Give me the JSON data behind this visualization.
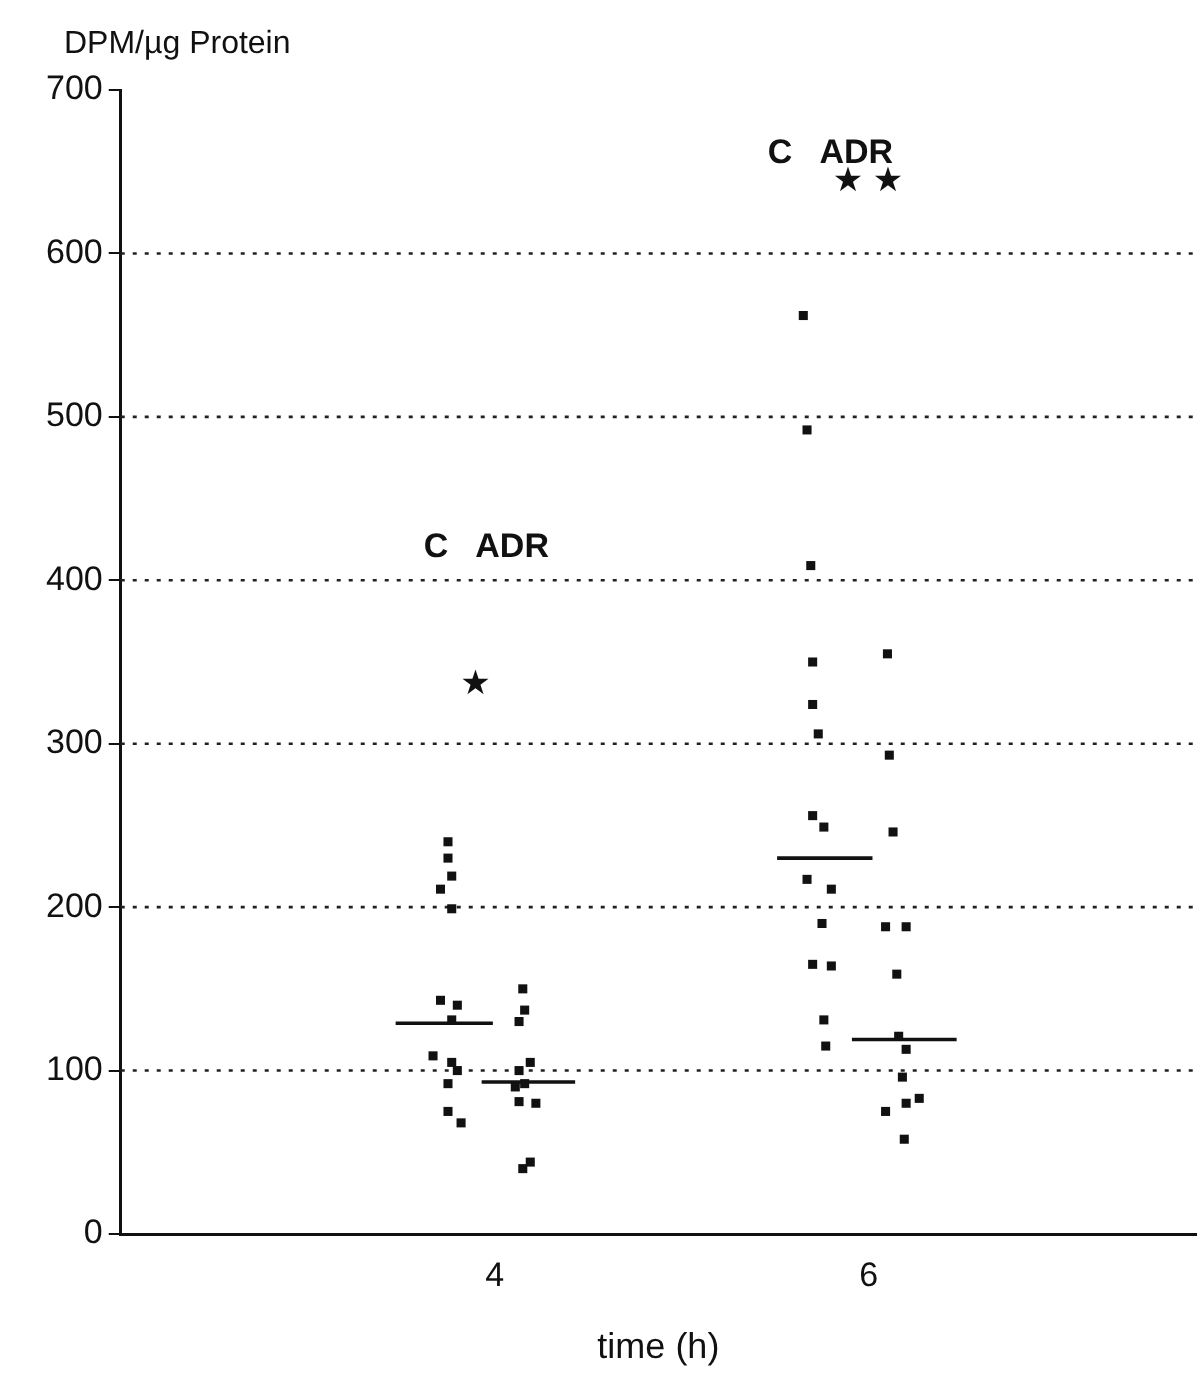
{
  "chart_data": {
    "type": "scatter",
    "ylabel": "DPM/µg Protein",
    "xlabel": "time (h)",
    "xlim": [
      2,
      7.75
    ],
    "xticks": [
      4,
      6
    ],
    "ylim": [
      0,
      700
    ],
    "yticks": [
      0,
      100,
      200,
      300,
      400,
      500,
      600,
      700
    ],
    "grid": "y",
    "series": [
      {
        "marker": "square",
        "color": "#111111",
        "x": [
          3.75,
          3.75,
          3.77,
          3.71,
          3.77,
          3.71,
          3.8,
          3.77,
          3.67,
          3.77,
          3.8,
          3.75,
          3.75,
          3.82
        ],
        "values": [
          240,
          230,
          219,
          211,
          199,
          143,
          140,
          131,
          109,
          105,
          100,
          92,
          75,
          68
        ]
      },
      {
        "marker": "square",
        "color": "#111111",
        "x": [
          4.15,
          4.16,
          4.13,
          4.19,
          4.13,
          4.16,
          4.11,
          4.13,
          4.22,
          4.19,
          4.15
        ],
        "values": [
          150,
          137,
          130,
          105,
          100,
          92,
          90,
          81,
          80,
          44,
          40
        ]
      },
      {
        "marker": "square",
        "color": "#111111",
        "x": [
          5.65,
          5.67,
          5.69,
          5.7,
          5.7,
          5.73,
          5.7,
          5.76,
          5.67,
          5.8,
          5.75,
          5.7,
          5.8,
          5.76,
          5.77
        ],
        "values": [
          562,
          492,
          409,
          350,
          324,
          306,
          256,
          249,
          217,
          211,
          190,
          165,
          164,
          131,
          115
        ]
      },
      {
        "marker": "square",
        "color": "#111111",
        "x": [
          6.1,
          6.11,
          6.13,
          6.09,
          6.2,
          6.15,
          6.16,
          6.2,
          6.18,
          6.09,
          6.2,
          6.27,
          6.19
        ],
        "values": [
          355,
          293,
          246,
          188,
          188,
          159,
          121,
          113,
          96,
          75,
          80,
          83,
          58
        ]
      },
      {
        "type": "line",
        "color": "#111111",
        "x": [
          3.47,
          3.99
        ],
        "values": [
          129,
          129
        ]
      },
      {
        "type": "line",
        "color": "#111111",
        "x": [
          3.93,
          4.43
        ],
        "values": [
          93,
          93
        ]
      },
      {
        "type": "line",
        "color": "#111111",
        "x": [
          5.51,
          6.02
        ],
        "values": [
          230,
          230
        ]
      },
      {
        "type": "line",
        "color": "#111111",
        "x": [
          5.91,
          6.47
        ],
        "values": [
          119,
          119
        ]
      }
    ],
    "annotations": [
      "C   ADR",
      "★",
      "C   ADR",
      "★ ★"
    ]
  }
}
